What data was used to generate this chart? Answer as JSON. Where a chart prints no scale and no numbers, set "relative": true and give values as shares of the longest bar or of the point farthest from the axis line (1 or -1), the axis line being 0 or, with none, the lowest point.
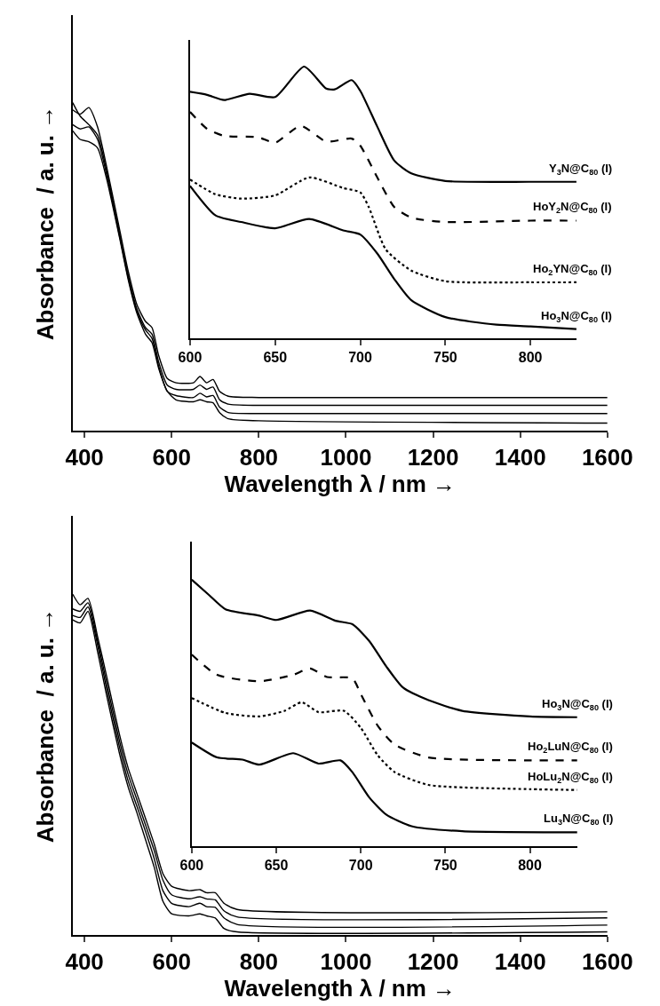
{
  "chart_data": [
    {
      "type": "line",
      "relative": true,
      "xlabel": "Wavelength λ / nm →",
      "ylabel": "Absorbance  / a. u. →",
      "xlim": [
        373,
        1600
      ],
      "xticks": [
        400,
        600,
        800,
        1000,
        1200,
        1400,
        1600
      ],
      "legend": false,
      "marker": "none",
      "x": [
        373,
        390,
        410,
        430,
        450,
        480,
        500,
        520,
        540,
        555,
        570,
        590,
        610,
        650,
        665,
        680,
        695,
        710,
        730,
        800,
        1600
      ],
      "series": [
        {
          "color": "#000000",
          "line_style": "solid",
          "values": [
            0.978,
            0.965,
            0.985,
            0.926,
            0.81,
            0.617,
            0.488,
            0.385,
            0.333,
            0.314,
            0.23,
            0.159,
            0.146,
            0.146,
            0.165,
            0.146,
            0.156,
            0.12,
            0.105,
            0.101,
            0.101
          ]
        },
        {
          "color": "#000000",
          "line_style": "solid",
          "values": [
            1.0,
            0.959,
            0.933,
            0.901,
            0.797,
            0.604,
            0.475,
            0.372,
            0.314,
            0.294,
            0.21,
            0.139,
            0.126,
            0.126,
            0.139,
            0.126,
            0.133,
            0.094,
            0.081,
            0.077,
            0.077
          ]
        },
        {
          "color": "#000000",
          "line_style": "solid",
          "values": [
            0.933,
            0.92,
            0.926,
            0.888,
            0.785,
            0.597,
            0.468,
            0.365,
            0.307,
            0.281,
            0.197,
            0.12,
            0.107,
            0.101,
            0.114,
            0.103,
            0.107,
            0.072,
            0.055,
            0.052,
            0.052
          ]
        },
        {
          "color": "#000000",
          "line_style": "solid",
          "values": [
            0.914,
            0.888,
            0.881,
            0.862,
            0.772,
            0.591,
            0.462,
            0.359,
            0.294,
            0.268,
            0.191,
            0.12,
            0.094,
            0.088,
            0.094,
            0.088,
            0.085,
            0.055,
            0.036,
            0.03,
            0.023
          ]
        }
      ]
    },
    {
      "type": "line",
      "relative": true,
      "xlim": [
        600,
        827
      ],
      "xticks": [
        600,
        650,
        700,
        750,
        800
      ],
      "legend": false,
      "marker": "none",
      "series": [
        {
          "name": "Y$_{3}$N@C$_{80}$ (I)",
          "color": "#000000",
          "line_style": "solid",
          "x": [
            600,
            610,
            620,
            635,
            650,
            667,
            680,
            685,
            695,
            700,
            710,
            720,
            730,
            750,
            800,
            827
          ],
          "values": [
            0.907,
            0.896,
            0.877,
            0.9,
            0.888,
            1.0,
            0.919,
            0.916,
            0.95,
            0.911,
            0.779,
            0.654,
            0.607,
            0.579,
            0.576,
            0.576
          ]
        },
        {
          "name": "HoY$_{2}$N@C$_{80}$ (I)",
          "color": "#000000",
          "line_style": "dashed",
          "x": [
            600,
            610,
            620,
            640,
            650,
            665,
            680,
            695,
            700,
            710,
            720,
            730,
            750,
            800,
            827
          ],
          "values": [
            0.833,
            0.771,
            0.745,
            0.74,
            0.72,
            0.782,
            0.724,
            0.735,
            0.709,
            0.592,
            0.483,
            0.444,
            0.428,
            0.433,
            0.433
          ]
        },
        {
          "name": "Ho$_{2}$YN@C$_{80}$ (I)",
          "color": "#000000",
          "line_style": "dotted",
          "x": [
            600,
            615,
            630,
            650,
            670,
            690,
            700,
            705,
            715,
            730,
            750,
            800,
            827
          ],
          "values": [
            0.584,
            0.53,
            0.514,
            0.526,
            0.592,
            0.553,
            0.537,
            0.483,
            0.327,
            0.249,
            0.21,
            0.206,
            0.206
          ]
        },
        {
          "name": "Ho$_{3}$N@C$_{80}$ (I)",
          "color": "#000000",
          "line_style": "solid",
          "x": [
            600,
            615,
            630,
            650,
            670,
            690,
            700,
            710,
            720,
            730,
            750,
            780,
            800,
            827
          ],
          "values": [
            0.561,
            0.452,
            0.428,
            0.405,
            0.439,
            0.397,
            0.382,
            0.312,
            0.218,
            0.14,
            0.078,
            0.05,
            0.044,
            0.034
          ]
        }
      ]
    },
    {
      "type": "line",
      "relative": true,
      "xlabel": "Wavelength λ / nm →",
      "ylabel": "Absorbance  / a. u. →",
      "xlim": [
        373,
        1600
      ],
      "xticks": [
        400,
        600,
        800,
        1000,
        1200,
        1400,
        1600
      ],
      "legend": false,
      "marker": "none",
      "x": [
        373,
        390,
        408,
        430,
        450,
        480,
        500,
        520,
        540,
        560,
        580,
        600,
        640,
        665,
        680,
        700,
        720,
        750,
        1600
      ],
      "series": [
        {
          "color": "#000000",
          "line_style": "solid",
          "values": [
            1.0,
            0.969,
            0.988,
            0.876,
            0.764,
            0.59,
            0.491,
            0.416,
            0.342,
            0.267,
            0.18,
            0.143,
            0.13,
            0.133,
            0.124,
            0.124,
            0.093,
            0.075,
            0.068
          ]
        },
        {
          "color": "#000000",
          "line_style": "solid",
          "values": [
            0.957,
            0.95,
            0.975,
            0.863,
            0.745,
            0.571,
            0.472,
            0.398,
            0.323,
            0.248,
            0.161,
            0.118,
            0.106,
            0.112,
            0.106,
            0.103,
            0.071,
            0.053,
            0.05
          ]
        },
        {
          "color": "#000000",
          "line_style": "solid",
          "values": [
            0.938,
            0.932,
            0.963,
            0.851,
            0.727,
            0.553,
            0.453,
            0.379,
            0.304,
            0.224,
            0.13,
            0.093,
            0.083,
            0.093,
            0.083,
            0.081,
            0.05,
            0.031,
            0.029
          ]
        },
        {
          "color": "#000000",
          "line_style": "solid",
          "values": [
            0.925,
            0.916,
            0.95,
            0.832,
            0.708,
            0.534,
            0.435,
            0.36,
            0.28,
            0.199,
            0.099,
            0.062,
            0.056,
            0.062,
            0.056,
            0.05,
            0.019,
            0.009,
            0.009
          ]
        }
      ]
    },
    {
      "type": "line",
      "relative": true,
      "xlim": [
        600,
        828
      ],
      "xticks": [
        600,
        650,
        700,
        750,
        800
      ],
      "legend": false,
      "marker": "none",
      "series": [
        {
          "name": "Ho$_{3}$N@C$_{80}$ (I)",
          "color": "#000000",
          "line_style": "solid",
          "x": [
            600,
            610,
            620,
            640,
            650,
            670,
            685,
            695,
            705,
            715,
            725,
            740,
            760,
            800,
            828
          ],
          "values": [
            1.0,
            0.944,
            0.889,
            0.865,
            0.849,
            0.884,
            0.846,
            0.833,
            0.77,
            0.675,
            0.595,
            0.548,
            0.508,
            0.487,
            0.484
          ]
        },
        {
          "name": "Ho$_{2}$LuN@C$_{80}$ (I)",
          "color": "#000000",
          "line_style": "dashed",
          "x": [
            600,
            615,
            640,
            660,
            670,
            680,
            695,
            700,
            710,
            720,
            740,
            800,
            828
          ],
          "values": [
            0.719,
            0.643,
            0.619,
            0.643,
            0.667,
            0.635,
            0.63,
            0.571,
            0.452,
            0.381,
            0.333,
            0.322,
            0.322
          ]
        },
        {
          "name": "HoLu$_{2}$N@C$_{80}$ (I)",
          "color": "#000000",
          "line_style": "dotted",
          "x": [
            600,
            620,
            640,
            655,
            665,
            675,
            690,
            700,
            710,
            720,
            740,
            800,
            828
          ],
          "values": [
            0.556,
            0.5,
            0.487,
            0.508,
            0.54,
            0.503,
            0.508,
            0.444,
            0.341,
            0.278,
            0.23,
            0.214,
            0.211
          ]
        },
        {
          "name": "Lu$_{3}$N@C$_{80}$ (I)",
          "color": "#000000",
          "line_style": "solid",
          "x": [
            600,
            615,
            630,
            640,
            660,
            675,
            688,
            695,
            705,
            715,
            730,
            760,
            828
          ],
          "values": [
            0.389,
            0.333,
            0.325,
            0.306,
            0.349,
            0.31,
            0.322,
            0.278,
            0.183,
            0.119,
            0.075,
            0.056,
            0.052
          ]
        }
      ]
    }
  ]
}
